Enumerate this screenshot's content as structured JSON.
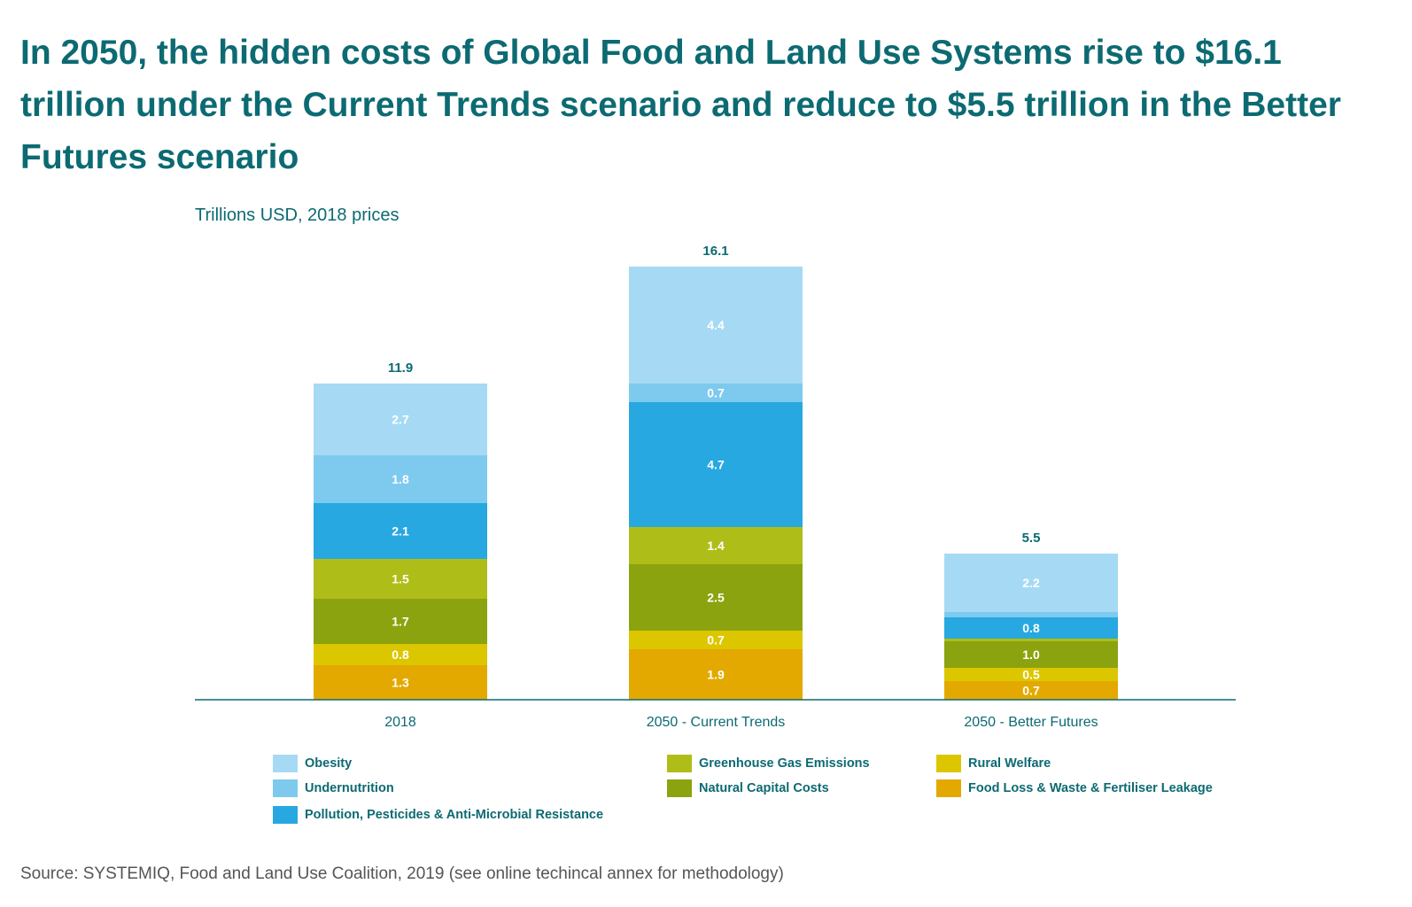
{
  "title": "In 2050, the hidden costs of Global Food and Land Use Systems rise to $16.1 trillion under the Current Trends scenario and reduce to $5.5 trillion in the Better Futures scenario",
  "source": "Source: SYSTEMIQ, Food and Land Use Coalition, 2019 (see online techincal annex for methodology)",
  "colors": {
    "title": "#0c6a72",
    "axis": "#0c6a72",
    "segment_label": "#ffffff"
  },
  "chart_data": {
    "type": "bar",
    "stacked": true,
    "unit_label": "Trillions USD, 2018 prices",
    "categories": [
      "2018",
      "2050 - Current Trends",
      "2050 - Better Futures"
    ],
    "totals": [
      "11.9",
      "16.1",
      "5.5"
    ],
    "ylim": [
      0,
      17
    ],
    "grid": false,
    "legend_position": "bottom",
    "series": [
      {
        "name": "Food Loss & Waste & Fertiliser Leakage",
        "color": "#e3a900",
        "values": [
          1.3,
          1.9,
          0.7
        ],
        "labels": [
          "1.3",
          "1.9",
          "0.7"
        ]
      },
      {
        "name": "Rural Welfare",
        "color": "#dcc600",
        "values": [
          0.8,
          0.7,
          0.5
        ],
        "labels": [
          "0.8",
          "0.7",
          "0.5"
        ]
      },
      {
        "name": "Natural Capital Costs",
        "color": "#8ba30e",
        "values": [
          1.7,
          2.5,
          1.0
        ],
        "labels": [
          "1.7",
          "2.5",
          "1.0"
        ]
      },
      {
        "name": "Greenhouse Gas Emissions",
        "color": "#afbd19",
        "values": [
          1.5,
          1.4,
          0.1
        ],
        "labels": [
          "1.5",
          "1.4",
          ""
        ]
      },
      {
        "name": "Pollution, Pesticides & Anti-Microbial Resistance",
        "color": "#27a8e0",
        "values": [
          2.1,
          4.7,
          0.8
        ],
        "labels": [
          "2.1",
          "4.7",
          "0.8"
        ]
      },
      {
        "name": "Undernutrition",
        "color": "#7dcaee",
        "values": [
          1.8,
          0.7,
          0.2
        ],
        "labels": [
          "1.8",
          "0.7",
          ""
        ]
      },
      {
        "name": "Obesity",
        "color": "#a6daf4",
        "values": [
          2.7,
          4.4,
          2.2
        ],
        "labels": [
          "2.7",
          "4.4",
          "2.2"
        ]
      }
    ]
  },
  "legend": [
    {
      "name": "Obesity",
      "color": "#a6daf4"
    },
    {
      "name": "Undernutrition",
      "color": "#7dcaee"
    },
    {
      "name": "Pollution, Pesticides & Anti-Microbial Resistance",
      "color": "#27a8e0"
    },
    {
      "name": "Greenhouse Gas Emissions",
      "color": "#afbd19"
    },
    {
      "name": "Natural Capital Costs",
      "color": "#8ba30e"
    },
    {
      "name": "Rural Welfare",
      "color": "#dcc600"
    },
    {
      "name": "Food Loss & Waste & Fertiliser Leakage",
      "color": "#e3a900"
    }
  ]
}
